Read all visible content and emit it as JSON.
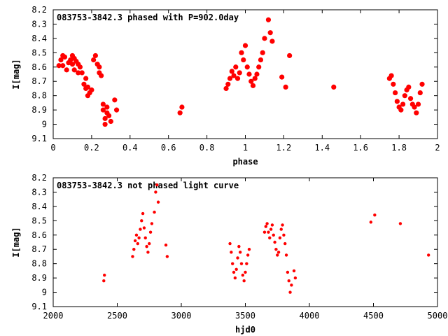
{
  "colors": {
    "marker": "#ff0000",
    "axis": "#000000",
    "background": "#ffffff"
  },
  "chart_data": [
    {
      "type": "scatter",
      "title": "083753-3842.3 phased with P=902.0day",
      "xlabel": "phase",
      "ylabel": "I[mag]",
      "xlim": [
        0,
        2
      ],
      "ylim": [
        9.1,
        8.2
      ],
      "y_inverted": true,
      "grid": false,
      "x_ticks": [
        "0",
        "0.2",
        "0.4",
        "0.6",
        "0.8",
        "1",
        "1.2",
        "1.4",
        "1.6",
        "1.8",
        "2"
      ],
      "y_ticks": [
        "8.2",
        "8.3",
        "8.4",
        "8.5",
        "8.6",
        "8.7",
        "8.8",
        "8.9",
        "9",
        "9.1"
      ],
      "series": [
        {
          "x": [
            0.03,
            0.04,
            0.05,
            0.05,
            0.06,
            0.07,
            0.08,
            0.09,
            0.1,
            0.1,
            0.11,
            0.11,
            0.12,
            0.13,
            0.13,
            0.14,
            0.15,
            0.16,
            0.17,
            0.17,
            0.18,
            0.18,
            0.19,
            0.2,
            0.21,
            0.22,
            0.23,
            0.24,
            0.24,
            0.25,
            0.26,
            0.26,
            0.27,
            0.27,
            0.28,
            0.28,
            0.29,
            0.3,
            0.32,
            0.33,
            0.66,
            0.67,
            0.9,
            0.91,
            0.92,
            0.93,
            0.94,
            0.95,
            0.96,
            0.97,
            0.98,
            0.99,
            1.0,
            1.01,
            1.02,
            1.03,
            1.04,
            1.05,
            1.06,
            1.07,
            1.08,
            1.09,
            1.1,
            1.12,
            1.13,
            1.14,
            1.19,
            1.21,
            1.23,
            1.46,
            1.75,
            1.76,
            1.77,
            1.78,
            1.79,
            1.8,
            1.81,
            1.82,
            1.83,
            1.84,
            1.85,
            1.86,
            1.87,
            1.88,
            1.89,
            1.9,
            1.91,
            1.92
          ],
          "y": [
            8.59,
            8.55,
            8.52,
            8.59,
            8.53,
            8.62,
            8.57,
            8.55,
            8.52,
            8.58,
            8.54,
            8.62,
            8.56,
            8.58,
            8.64,
            8.6,
            8.64,
            8.72,
            8.75,
            8.68,
            8.8,
            8.74,
            8.78,
            8.76,
            8.55,
            8.52,
            8.58,
            8.6,
            8.64,
            8.66,
            8.86,
            8.9,
            8.96,
            9.0,
            8.92,
            8.88,
            8.94,
            8.98,
            8.83,
            8.9,
            8.92,
            8.88,
            8.75,
            8.72,
            8.68,
            8.63,
            8.66,
            8.6,
            8.68,
            8.64,
            8.5,
            8.55,
            8.45,
            8.6,
            8.65,
            8.7,
            8.73,
            8.68,
            8.65,
            8.6,
            8.55,
            8.5,
            8.4,
            8.27,
            8.36,
            8.42,
            8.67,
            8.74,
            8.52,
            8.74,
            8.68,
            8.66,
            8.72,
            8.78,
            8.84,
            8.88,
            8.9,
            8.86,
            8.8,
            8.76,
            8.74,
            8.82,
            8.86,
            8.88,
            8.92,
            8.86,
            8.78,
            8.72
          ]
        }
      ]
    },
    {
      "type": "scatter",
      "title": "083753-3842.3 not phased light curve",
      "xlabel": "hjd0",
      "ylabel": "I[mag]",
      "xlim": [
        2000,
        5000
      ],
      "ylim": [
        9.1,
        8.2
      ],
      "y_inverted": true,
      "grid": false,
      "x_ticks": [
        "2000",
        "2500",
        "3000",
        "3500",
        "4000",
        "4500",
        "5000"
      ],
      "y_ticks": [
        "8.2",
        "8.3",
        "8.4",
        "8.5",
        "8.6",
        "8.7",
        "8.8",
        "8.9",
        "9",
        "9.1"
      ],
      "series": [
        {
          "x": [
            2395,
            2400,
            2620,
            2630,
            2640,
            2650,
            2660,
            2670,
            2680,
            2690,
            2700,
            2710,
            2720,
            2730,
            2740,
            2750,
            2760,
            2770,
            2790,
            2800,
            2810,
            2820,
            2880,
            2890,
            3380,
            3390,
            3400,
            3410,
            3420,
            3430,
            3440,
            3450,
            3460,
            3470,
            3480,
            3490,
            3500,
            3510,
            3520,
            3530,
            3650,
            3660,
            3670,
            3680,
            3690,
            3700,
            3710,
            3720,
            3730,
            3740,
            3750,
            3760,
            3770,
            3780,
            3790,
            3800,
            3810,
            3820,
            3830,
            3840,
            3850,
            3860,
            3880,
            3890,
            4480,
            4510,
            4710,
            4930
          ],
          "y": [
            8.92,
            8.88,
            8.75,
            8.7,
            8.64,
            8.6,
            8.66,
            8.62,
            8.56,
            8.5,
            8.45,
            8.55,
            8.62,
            8.68,
            8.72,
            8.66,
            8.58,
            8.52,
            8.44,
            8.3,
            8.25,
            8.37,
            8.67,
            8.75,
            8.66,
            8.72,
            8.8,
            8.86,
            8.9,
            8.84,
            8.76,
            8.68,
            8.72,
            8.8,
            8.88,
            8.92,
            8.86,
            8.8,
            8.74,
            8.7,
            8.58,
            8.54,
            8.52,
            8.58,
            8.62,
            8.56,
            8.53,
            8.6,
            8.65,
            8.7,
            8.74,
            8.72,
            8.62,
            8.56,
            8.53,
            8.6,
            8.66,
            8.74,
            8.86,
            8.92,
            9.0,
            8.95,
            8.85,
            8.9,
            8.51,
            8.46,
            8.52,
            8.74
          ]
        }
      ]
    }
  ]
}
